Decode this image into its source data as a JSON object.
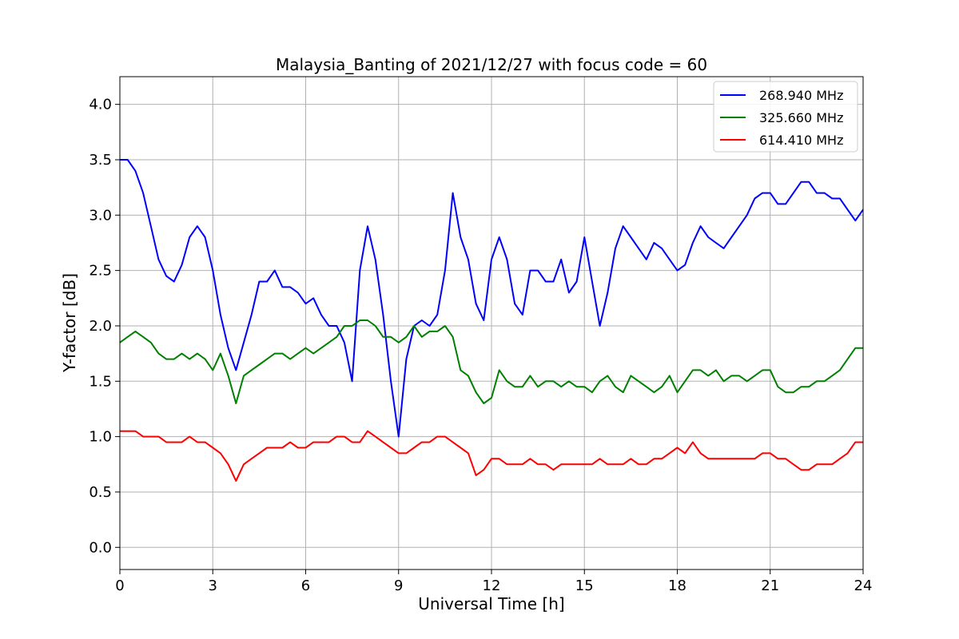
{
  "chart_data": {
    "type": "line",
    "title": "Malaysia_Banting of 2021/12/27 with focus code = 60",
    "xlabel": "Universal Time [h]",
    "ylabel": "Y-factor [dB]",
    "xlim": [
      0,
      24
    ],
    "ylim": [
      -0.2,
      4.25
    ],
    "x_ticks": [
      "0",
      "3",
      "6",
      "9",
      "12",
      "15",
      "18",
      "21",
      "24"
    ],
    "y_ticks": [
      "0.0",
      "0.5",
      "1.0",
      "1.5",
      "2.0",
      "2.5",
      "3.0",
      "3.5",
      "4.0"
    ],
    "grid": true,
    "legend_position": "top-right",
    "series": [
      {
        "name": "268.940 MHz",
        "color": "#0000ff",
        "x": [
          0,
          0.25,
          0.5,
          0.75,
          1.0,
          1.25,
          1.5,
          1.75,
          2.0,
          2.25,
          2.5,
          2.75,
          3.0,
          3.25,
          3.5,
          3.75,
          4.0,
          4.25,
          4.5,
          4.75,
          5.0,
          5.25,
          5.5,
          5.75,
          6.0,
          6.25,
          6.5,
          6.75,
          7.0,
          7.25,
          7.5,
          7.75,
          8.0,
          8.25,
          8.5,
          8.75,
          9.0,
          9.25,
          9.5,
          9.75,
          10.0,
          10.25,
          10.5,
          10.75,
          11.0,
          11.25,
          11.5,
          11.75,
          12.0,
          12.25,
          12.5,
          12.75,
          13.0,
          13.25,
          13.5,
          13.75,
          14.0,
          14.25,
          14.5,
          14.75,
          15.0,
          15.25,
          15.5,
          15.75,
          16.0,
          16.25,
          16.5,
          16.75,
          17.0,
          17.25,
          17.5,
          17.75,
          18.0,
          18.25,
          18.5,
          18.75,
          19.0,
          19.25,
          19.5,
          19.75,
          20.0,
          20.25,
          20.5,
          20.75,
          21.0,
          21.25,
          21.5,
          21.75,
          22.0,
          22.25,
          22.5,
          22.75,
          23.0,
          23.25,
          23.5,
          23.75,
          24.0
        ],
        "values": [
          3.5,
          3.5,
          3.4,
          3.2,
          2.9,
          2.6,
          2.45,
          2.4,
          2.55,
          2.8,
          2.9,
          2.8,
          2.5,
          2.1,
          1.8,
          1.6,
          1.85,
          2.1,
          2.4,
          2.4,
          2.5,
          2.35,
          2.35,
          2.3,
          2.2,
          2.25,
          2.1,
          2.0,
          2.0,
          1.85,
          1.5,
          2.5,
          2.9,
          2.6,
          2.1,
          1.5,
          1.0,
          1.7,
          2.0,
          2.05,
          2.0,
          2.1,
          2.5,
          3.2,
          2.8,
          2.6,
          2.2,
          2.05,
          2.6,
          2.8,
          2.6,
          2.2,
          2.1,
          2.5,
          2.5,
          2.4,
          2.4,
          2.6,
          2.3,
          2.4,
          2.8,
          2.4,
          2.0,
          2.3,
          2.7,
          2.9,
          2.8,
          2.7,
          2.6,
          2.75,
          2.7,
          2.6,
          2.5,
          2.55,
          2.75,
          2.9,
          2.8,
          2.75,
          2.7,
          2.8,
          2.9,
          3.0,
          3.15,
          3.2,
          3.2,
          3.1,
          3.1,
          3.2,
          3.3,
          3.3,
          3.2,
          3.2,
          3.15,
          3.15,
          3.05,
          2.95,
          3.05
        ]
      },
      {
        "name": "325.660 MHz",
        "color": "#008000",
        "x": [
          0,
          0.25,
          0.5,
          0.75,
          1.0,
          1.25,
          1.5,
          1.75,
          2.0,
          2.25,
          2.5,
          2.75,
          3.0,
          3.25,
          3.5,
          3.75,
          4.0,
          4.25,
          4.5,
          4.75,
          5.0,
          5.25,
          5.5,
          5.75,
          6.0,
          6.25,
          6.5,
          6.75,
          7.0,
          7.25,
          7.5,
          7.75,
          8.0,
          8.25,
          8.5,
          8.75,
          9.0,
          9.25,
          9.5,
          9.75,
          10.0,
          10.25,
          10.5,
          10.75,
          11.0,
          11.25,
          11.5,
          11.75,
          12.0,
          12.25,
          12.5,
          12.75,
          13.0,
          13.25,
          13.5,
          13.75,
          14.0,
          14.25,
          14.5,
          14.75,
          15.0,
          15.25,
          15.5,
          15.75,
          16.0,
          16.25,
          16.5,
          16.75,
          17.0,
          17.25,
          17.5,
          17.75,
          18.0,
          18.25,
          18.5,
          18.75,
          19.0,
          19.25,
          19.5,
          19.75,
          20.0,
          20.25,
          20.5,
          20.75,
          21.0,
          21.25,
          21.5,
          21.75,
          22.0,
          22.25,
          22.5,
          22.75,
          23.0,
          23.25,
          23.5,
          23.75,
          24.0
        ],
        "values": [
          1.85,
          1.9,
          1.95,
          1.9,
          1.85,
          1.75,
          1.7,
          1.7,
          1.75,
          1.7,
          1.75,
          1.7,
          1.6,
          1.75,
          1.55,
          1.3,
          1.55,
          1.6,
          1.65,
          1.7,
          1.75,
          1.75,
          1.7,
          1.75,
          1.8,
          1.75,
          1.8,
          1.85,
          1.9,
          2.0,
          2.0,
          2.05,
          2.05,
          2.0,
          1.9,
          1.9,
          1.85,
          1.9,
          2.0,
          1.9,
          1.95,
          1.95,
          2.0,
          1.9,
          1.6,
          1.55,
          1.4,
          1.3,
          1.35,
          1.6,
          1.5,
          1.45,
          1.45,
          1.55,
          1.45,
          1.5,
          1.5,
          1.45,
          1.5,
          1.45,
          1.45,
          1.4,
          1.5,
          1.55,
          1.45,
          1.4,
          1.55,
          1.5,
          1.45,
          1.4,
          1.45,
          1.55,
          1.4,
          1.5,
          1.6,
          1.6,
          1.55,
          1.6,
          1.5,
          1.55,
          1.55,
          1.5,
          1.55,
          1.6,
          1.6,
          1.45,
          1.4,
          1.4,
          1.45,
          1.45,
          1.5,
          1.5,
          1.55,
          1.6,
          1.7,
          1.8,
          1.8
        ]
      },
      {
        "name": "614.410 MHz",
        "color": "#ff0000",
        "x": [
          0,
          0.25,
          0.5,
          0.75,
          1.0,
          1.25,
          1.5,
          1.75,
          2.0,
          2.25,
          2.5,
          2.75,
          3.0,
          3.25,
          3.5,
          3.75,
          4.0,
          4.25,
          4.5,
          4.75,
          5.0,
          5.25,
          5.5,
          5.75,
          6.0,
          6.25,
          6.5,
          6.75,
          7.0,
          7.25,
          7.5,
          7.75,
          8.0,
          8.25,
          8.5,
          8.75,
          9.0,
          9.25,
          9.5,
          9.75,
          10.0,
          10.25,
          10.5,
          10.75,
          11.0,
          11.25,
          11.5,
          11.75,
          12.0,
          12.25,
          12.5,
          12.75,
          13.0,
          13.25,
          13.5,
          13.75,
          14.0,
          14.25,
          14.5,
          14.75,
          15.0,
          15.25,
          15.5,
          15.75,
          16.0,
          16.25,
          16.5,
          16.75,
          17.0,
          17.25,
          17.5,
          17.75,
          18.0,
          18.25,
          18.5,
          18.75,
          19.0,
          19.25,
          19.5,
          19.75,
          20.0,
          20.25,
          20.5,
          20.75,
          21.0,
          21.25,
          21.5,
          21.75,
          22.0,
          22.25,
          22.5,
          22.75,
          23.0,
          23.25,
          23.5,
          23.75,
          24.0
        ],
        "values": [
          1.05,
          1.05,
          1.05,
          1.0,
          1.0,
          1.0,
          0.95,
          0.95,
          0.95,
          1.0,
          0.95,
          0.95,
          0.9,
          0.85,
          0.75,
          0.6,
          0.75,
          0.8,
          0.85,
          0.9,
          0.9,
          0.9,
          0.95,
          0.9,
          0.9,
          0.95,
          0.95,
          0.95,
          1.0,
          1.0,
          0.95,
          0.95,
          1.05,
          1.0,
          0.95,
          0.9,
          0.85,
          0.85,
          0.9,
          0.95,
          0.95,
          1.0,
          1.0,
          0.95,
          0.9,
          0.85,
          0.65,
          0.7,
          0.8,
          0.8,
          0.75,
          0.75,
          0.75,
          0.8,
          0.75,
          0.75,
          0.7,
          0.75,
          0.75,
          0.75,
          0.75,
          0.75,
          0.8,
          0.75,
          0.75,
          0.75,
          0.8,
          0.75,
          0.75,
          0.8,
          0.8,
          0.85,
          0.9,
          0.85,
          0.95,
          0.85,
          0.8,
          0.8,
          0.8,
          0.8,
          0.8,
          0.8,
          0.8,
          0.85,
          0.85,
          0.8,
          0.8,
          0.75,
          0.7,
          0.7,
          0.75,
          0.75,
          0.75,
          0.8,
          0.85,
          0.95,
          0.95
        ]
      }
    ]
  }
}
